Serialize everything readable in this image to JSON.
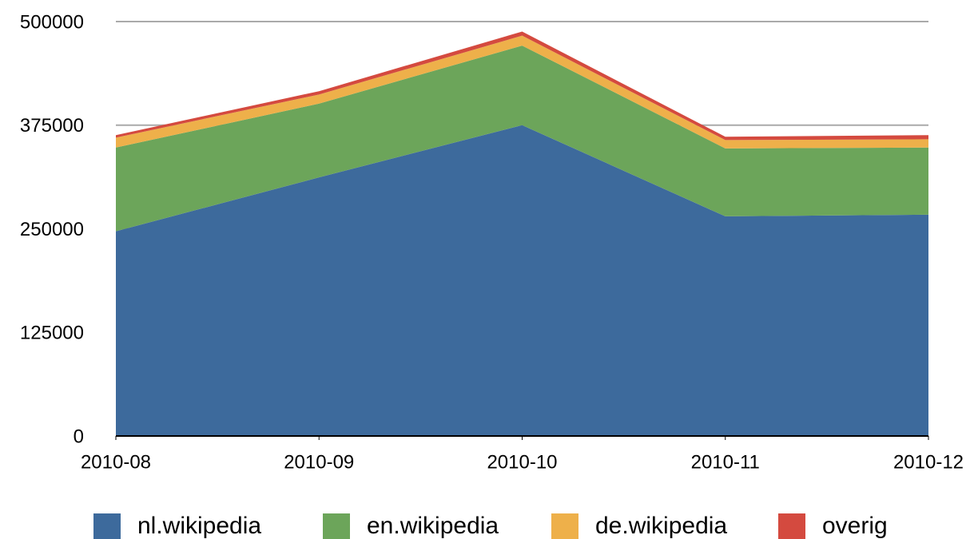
{
  "chart_data": {
    "type": "stacked_area",
    "categories": [
      "2010-08",
      "2010-09",
      "2010-10",
      "2010-11",
      "2010-12"
    ],
    "series": [
      {
        "name": "nl.wikipedia",
        "color": "#3d6a9c",
        "values": [
          247000,
          312000,
          375000,
          265000,
          267000
        ]
      },
      {
        "name": "en.wikipedia",
        "color": "#6ca55a",
        "values": [
          101000,
          89000,
          96000,
          82000,
          81000
        ]
      },
      {
        "name": "de.wikipedia",
        "color": "#eeb04a",
        "values": [
          12000,
          11000,
          12000,
          10000,
          10000
        ]
      },
      {
        "name": "overig",
        "color": "#d44a3f",
        "values": [
          3000,
          4000,
          5000,
          4000,
          5000
        ]
      }
    ],
    "ylim": [
      0,
      500000
    ],
    "yticks": [
      0,
      125000,
      250000,
      375000,
      500000
    ],
    "grid": true,
    "legend": "bottom"
  }
}
